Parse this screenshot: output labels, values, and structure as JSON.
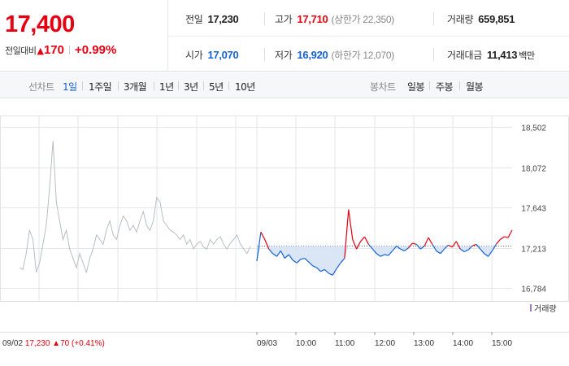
{
  "quote": {
    "price": "17,400",
    "change_label": "전일대비",
    "change_arrow": "▲",
    "change_value": "170",
    "change_rate": "+0.99%",
    "prev_close_label": "전일",
    "prev_close": "17,230",
    "open_label": "시가",
    "open": "17,070",
    "high_label": "고가",
    "high": "17,710",
    "upper_limit": "(상한가 22,350)",
    "low_label": "저가",
    "low": "16,920",
    "lower_limit": "(하한가 12,070)",
    "volume_label": "거래량",
    "volume": "659,851",
    "amount_label": "거래대금",
    "amount": "11,413",
    "amount_unit": "백만"
  },
  "tabs": {
    "line_title": "선차트",
    "line_periods": [
      "1일",
      "1주일",
      "3개월",
      "1년",
      "3년",
      "5년",
      "10년"
    ],
    "active": "1일",
    "candle_title": "봉차트",
    "candle_periods": [
      "일봉",
      "주봉",
      "월봉"
    ]
  },
  "colors": {
    "up": "#e60012",
    "down": "#1561d6",
    "grid": "#e3e6ea"
  },
  "chart_data": {
    "type": "line",
    "y_ticks": [
      16784,
      17213,
      17643,
      18072,
      18502
    ],
    "y_tick_labels": [
      "16,784",
      "17,213",
      "17,643",
      "18,072",
      "18,502"
    ],
    "ylim": [
      16784,
      18502
    ],
    "reference_price": 17230,
    "reference_label": "09/02 17,230 ▲70 (+0.41%)",
    "x_tick_labels": [
      "09/02",
      "09/03",
      "10:00",
      "11:00",
      "12:00",
      "13:00",
      "14:00",
      "15:00"
    ],
    "volume_label": "거래량",
    "series": [
      {
        "name": "09/02",
        "values": [
          17000,
          16980,
          17150,
          17400,
          17300,
          16950,
          17050,
          17250,
          17450,
          17850,
          18350,
          17700,
          17500,
          17300,
          17400,
          17200,
          17100,
          17000,
          17150,
          17050,
          16950,
          17100,
          17200,
          17350,
          17300,
          17250,
          17400,
          17500,
          17350,
          17300,
          17450,
          17550,
          17500,
          17400,
          17450,
          17380,
          17500,
          17600,
          17450,
          17400,
          17500,
          17750,
          17700,
          17500,
          17450,
          17400,
          17380,
          17350,
          17300,
          17350,
          17250,
          17300,
          17200,
          17250,
          17280,
          17220,
          17200,
          17300,
          17250,
          17300,
          17330,
          17250,
          17200,
          17260,
          17300,
          17350,
          17250,
          17200,
          17150,
          17230
        ]
      },
      {
        "name": "09/03",
        "values": [
          17070,
          17380,
          17300,
          17200,
          17150,
          17120,
          17180,
          17100,
          17140,
          17080,
          17050,
          17090,
          17100,
          17060,
          17020,
          17000,
          16960,
          16980,
          16940,
          16920,
          16990,
          17050,
          17100,
          17620,
          17300,
          17200,
          17280,
          17330,
          17250,
          17200,
          17150,
          17120,
          17140,
          17130,
          17180,
          17230,
          17200,
          17180,
          17210,
          17260,
          17250,
          17200,
          17230,
          17320,
          17250,
          17180,
          17150,
          17200,
          17240,
          17220,
          17280,
          17200,
          17170,
          17190,
          17230,
          17250,
          17200,
          17150,
          17120,
          17180,
          17250,
          17300,
          17330,
          17320,
          17400
        ]
      }
    ]
  }
}
